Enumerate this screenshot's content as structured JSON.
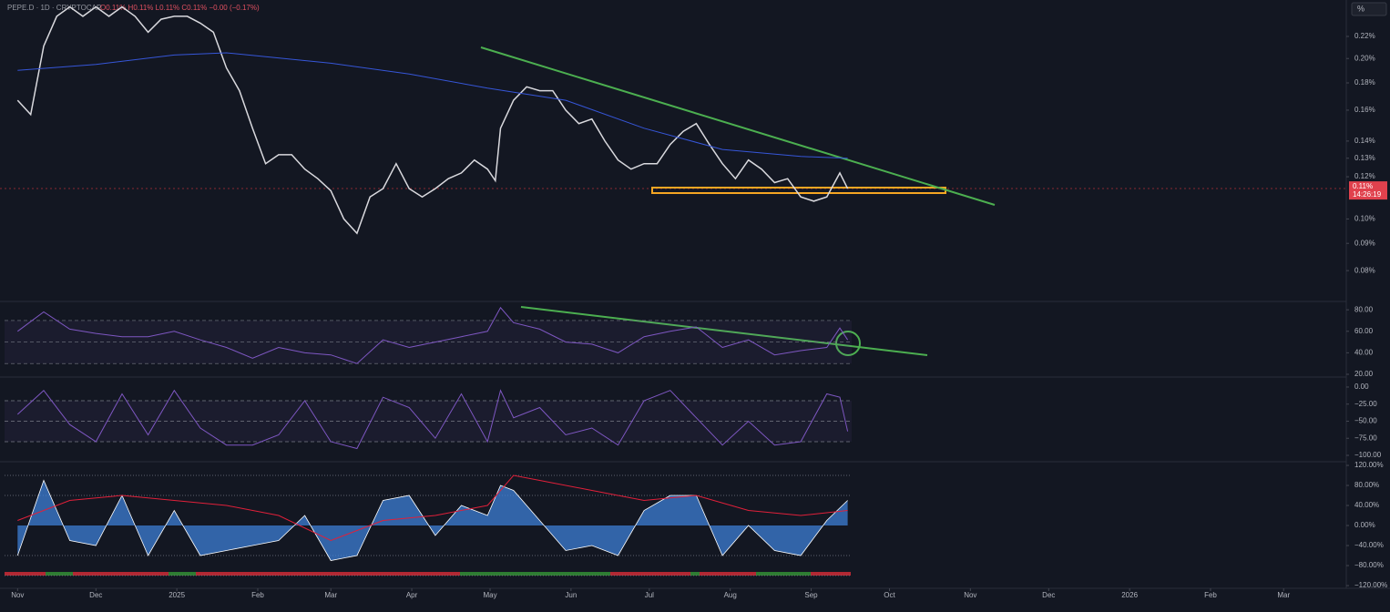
{
  "chart_data": [
    {
      "type": "line",
      "title": "PEPE.D · 1D · CRYPTOCAP",
      "subtitle": "O0.11% H0.11% L0.11% C0.11% −0.00 (−0.17%)",
      "scale_button": "%",
      "last_price_label": "0.11%",
      "countdown": "14:26:19",
      "log": true,
      "xlim": [
        -5,
        509
      ],
      "xticks": [
        {
          "value": 0,
          "label": "Nov"
        },
        {
          "value": 30,
          "label": "Dec"
        },
        {
          "value": 61,
          "label": "2025"
        },
        {
          "value": 92,
          "label": "Feb"
        },
        {
          "value": 120,
          "label": "Mar"
        },
        {
          "value": 151,
          "label": "Apr"
        },
        {
          "value": 181,
          "label": "May"
        },
        {
          "value": 212,
          "label": "Jun"
        },
        {
          "value": 242,
          "label": "Jul"
        },
        {
          "value": 273,
          "label": "Aug"
        },
        {
          "value": 304,
          "label": "Sep"
        },
        {
          "value": 334,
          "label": "Oct"
        },
        {
          "value": 365,
          "label": "Nov"
        },
        {
          "value": 395,
          "label": "Dec"
        },
        {
          "value": 426,
          "label": "2026"
        },
        {
          "value": 457,
          "label": "Feb"
        },
        {
          "value": 485,
          "label": "Mar"
        }
      ],
      "ylim": [
        0.0703,
        0.2575
      ],
      "yticks": [
        {
          "value": 0.08,
          "label": "0.08%"
        },
        {
          "value": 0.09,
          "label": "0.09%"
        },
        {
          "value": 0.1,
          "label": "0.10%"
        },
        {
          "value": 0.12,
          "label": "0.12%"
        },
        {
          "value": 0.13,
          "label": "0.13%"
        },
        {
          "value": 0.14,
          "label": "0.14%"
        },
        {
          "value": 0.16,
          "label": "0.16%"
        },
        {
          "value": 0.18,
          "label": "0.18%"
        },
        {
          "value": 0.2,
          "label": "0.20%"
        },
        {
          "value": 0.22,
          "label": "0.22%"
        }
      ],
      "series": [
        {
          "color": "#d9d9de",
          "x": [
            0,
            5,
            10,
            15,
            20,
            25,
            30,
            35,
            40,
            45,
            50,
            55,
            60,
            65,
            70,
            75,
            80,
            85,
            90,
            95,
            100,
            105,
            110,
            115,
            120,
            125,
            130,
            135,
            140,
            145,
            150,
            155,
            160,
            165,
            170,
            175,
            180,
            183,
            185,
            190,
            195,
            200,
            205,
            210,
            215,
            220,
            225,
            230,
            235,
            240,
            245,
            250,
            255,
            260,
            265,
            270,
            275,
            280,
            285,
            290,
            295,
            300,
            305,
            310,
            315,
            318
          ],
          "values": [
            0.167,
            0.157,
            0.211,
            0.24,
            0.25,
            0.24,
            0.25,
            0.24,
            0.25,
            0.24,
            0.224,
            0.237,
            0.24,
            0.24,
            0.233,
            0.224,
            0.192,
            0.174,
            0.148,
            0.127,
            0.132,
            0.132,
            0.124,
            0.119,
            0.113,
            0.1,
            0.094,
            0.11,
            0.114,
            0.127,
            0.114,
            0.11,
            0.114,
            0.119,
            0.122,
            0.129,
            0.124,
            0.118,
            0.148,
            0.167,
            0.177,
            0.174,
            0.174,
            0.16,
            0.151,
            0.154,
            0.14,
            0.129,
            0.124,
            0.127,
            0.127,
            0.138,
            0.146,
            0.151,
            0.138,
            0.127,
            0.119,
            0.129,
            0.124,
            0.117,
            0.119,
            0.11,
            0.108,
            0.11,
            0.122,
            0.114
          ]
        },
        {
          "color": "#3656d8",
          "x": [
            0,
            30,
            60,
            80,
            120,
            150,
            180,
            210,
            240,
            270,
            300,
            318
          ],
          "values": [
            0.19,
            0.195,
            0.203,
            0.205,
            0.196,
            0.187,
            0.176,
            0.167,
            0.148,
            0.135,
            0.131,
            0.13
          ]
        }
      ]
    },
    {
      "type": "line",
      "ylim": [
        18.3,
        86.9
      ],
      "yticks": [
        {
          "value": 20,
          "label": "20.00"
        },
        {
          "value": 40,
          "label": "40.00"
        },
        {
          "value": 60,
          "label": "60.00"
        },
        {
          "value": 80,
          "label": "80.00"
        }
      ],
      "levels": [
        70,
        50,
        30
      ],
      "series": [
        {
          "color": "#7e57c2",
          "x": [
            0,
            10,
            20,
            30,
            40,
            50,
            60,
            70,
            80,
            90,
            100,
            110,
            120,
            130,
            140,
            150,
            160,
            170,
            180,
            185,
            190,
            200,
            210,
            220,
            230,
            240,
            250,
            260,
            270,
            280,
            290,
            300,
            310,
            315,
            318
          ],
          "values": [
            60,
            78,
            62,
            58,
            55,
            55,
            60,
            52,
            45,
            35,
            45,
            40,
            38,
            30,
            52,
            45,
            50,
            55,
            60,
            82,
            68,
            62,
            50,
            48,
            40,
            55,
            60,
            64,
            45,
            52,
            38,
            42,
            45,
            63,
            52
          ]
        }
      ]
    },
    {
      "type": "line",
      "ylim": [
        -108,
        13.3
      ],
      "yticks": [
        {
          "value": 0,
          "label": "0.00"
        },
        {
          "value": -25,
          "label": "−25.00"
        },
        {
          "value": -50,
          "label": "−50.00"
        },
        {
          "value": -75,
          "label": "−75.00"
        },
        {
          "value": -100,
          "label": "−100.00"
        }
      ],
      "levels": [
        -20,
        -50,
        -80
      ],
      "series": [
        {
          "color": "#7e57c2",
          "x": [
            0,
            10,
            20,
            30,
            40,
            50,
            60,
            70,
            80,
            90,
            100,
            110,
            120,
            130,
            140,
            150,
            160,
            170,
            180,
            185,
            190,
            200,
            210,
            220,
            230,
            240,
            250,
            260,
            270,
            280,
            290,
            300,
            310,
            315,
            318
          ],
          "values": [
            -40,
            -5,
            -55,
            -80,
            -10,
            -70,
            -5,
            -60,
            -85,
            -85,
            -70,
            -20,
            -80,
            -90,
            -15,
            -30,
            -75,
            -10,
            -80,
            -5,
            -45,
            -30,
            -70,
            -60,
            -85,
            -20,
            -5,
            -45,
            -85,
            -50,
            -85,
            -80,
            -10,
            -15,
            -65
          ]
        }
      ]
    },
    {
      "type": "area",
      "ylim": [
        -123.6,
        125.5
      ],
      "yticks": [
        {
          "value": 120,
          "label": "120.00%"
        },
        {
          "value": 80,
          "label": "80.00%"
        },
        {
          "value": 40,
          "label": "40.00%"
        },
        {
          "value": 0,
          "label": "0.00%"
        },
        {
          "value": -40,
          "label": "−40.00%"
        },
        {
          "value": -80,
          "label": "−80.00%"
        },
        {
          "value": -120,
          "label": "−120.00%"
        }
      ],
      "levels": [
        100,
        60,
        -60,
        -100
      ],
      "series": [
        {
          "color": "#3d7fd6",
          "fill": true,
          "x": [
            0,
            10,
            20,
            30,
            40,
            50,
            60,
            70,
            80,
            90,
            100,
            110,
            120,
            130,
            140,
            150,
            160,
            170,
            180,
            185,
            190,
            200,
            210,
            220,
            230,
            240,
            250,
            260,
            270,
            280,
            290,
            300,
            310,
            318
          ],
          "values": [
            -60,
            90,
            -30,
            -40,
            60,
            -60,
            30,
            -60,
            -50,
            -40,
            -30,
            20,
            -70,
            -60,
            50,
            60,
            -20,
            40,
            20,
            80,
            70,
            10,
            -50,
            -40,
            -60,
            30,
            60,
            60,
            -60,
            0,
            -50,
            -60,
            10,
            50
          ]
        },
        {
          "color": "#e0203a",
          "x": [
            0,
            20,
            40,
            60,
            80,
            100,
            120,
            140,
            160,
            180,
            190,
            200,
            220,
            240,
            260,
            280,
            300,
            318
          ],
          "values": [
            10,
            50,
            60,
            50,
            40,
            20,
            -30,
            10,
            20,
            40,
            100,
            90,
            70,
            50,
            60,
            30,
            20,
            30
          ]
        }
      ]
    }
  ]
}
